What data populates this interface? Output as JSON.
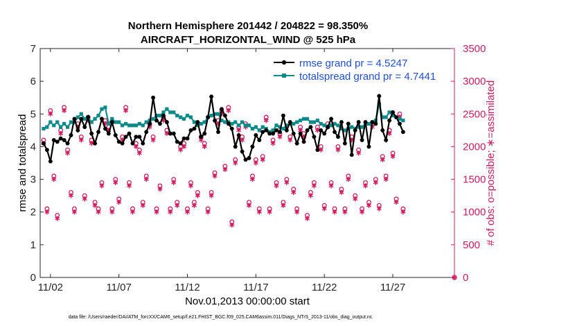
{
  "chart_data": {
    "type": "line",
    "title_line1": "Northern Hemisphere 201442 / 204822 = 98.350%",
    "title_line2": "AIRCRAFT_HORIZONTAL_WIND @ 525 hPa",
    "xlabel": "Nov.01,2013 00:00:00 start",
    "ylabel": "rmse and totalspread",
    "y2label": "# of obs: o=possible; ∗=assimilated",
    "footnote": "data file: /Users/raeder/DAI/ATM_forcXX/CAM6_setup/f.e21.FHIST_BGC.f09_025.CAM6assim.011/Diags_NTrS_2013-11/obs_diag_output.nc",
    "xlim": [
      0.75,
      31.0
    ],
    "ylim": [
      0,
      7
    ],
    "y2lim": [
      0,
      3500
    ],
    "x_ticks": [
      1.5,
      6.5,
      11.5,
      16.5,
      21.5,
      26.5
    ],
    "x_tick_labels": [
      "11/02",
      "11/07",
      "11/12",
      "11/17",
      "11/22",
      "11/27"
    ],
    "y_ticks": [
      0,
      1,
      2,
      3,
      4,
      5,
      6,
      7
    ],
    "y2_ticks": [
      0,
      500,
      1000,
      1500,
      2000,
      2500,
      3000,
      3500
    ],
    "colors": {
      "rmse": "#000000",
      "spread": "#0e8a8a",
      "obs": "#d11a5c",
      "legend_text": "#1f4fd6"
    },
    "legend": [
      {
        "key": "rmse",
        "label": "rmse grand pr = 4.5247"
      },
      {
        "key": "spread",
        "label": "totalspread grand pr = 4.7441"
      }
    ],
    "series": [
      {
        "name": "rmse",
        "values": [
          4.1,
          3.9,
          3.55,
          4.2,
          4.15,
          4.25,
          4.2,
          4.1,
          4.35,
          4.85,
          4.5,
          4.85,
          4.6,
          4.9,
          4.4,
          4.1,
          4.45,
          4.85,
          4.55,
          4.4,
          4.75,
          4.35,
          4.15,
          4.1,
          4.3,
          4.4,
          4.1,
          4.3,
          4.3,
          4.1,
          4.45,
          4.7,
          5.5,
          4.8,
          4.7,
          4.95,
          4.75,
          4.4,
          4.4,
          4.15,
          4.1,
          4.25,
          4.25,
          4.5,
          4.55,
          4.75,
          4.3,
          4.4,
          4.9,
          5.53,
          4.8,
          4.45,
          5.15,
          4.95,
          4.7,
          4.55,
          4.0,
          4.35,
          3.85,
          3.6,
          3.65,
          4.0,
          4.35,
          4.2,
          4.45,
          4.5,
          4.4,
          4.4,
          4.5,
          4.45,
          4.95,
          4.5,
          4.75,
          4.4,
          4.1,
          4.4,
          4.15,
          4.5,
          4.6,
          4.3,
          3.9,
          4.5,
          4.4,
          4.6,
          4.85,
          4.45,
          4.3,
          4.75,
          4.1,
          4.7,
          3.75,
          4.5,
          4.75,
          4.2,
          4.75,
          4.0,
          4.75,
          4.7,
          5.55,
          4.5,
          4.2,
          4.8,
          5.05,
          4.9,
          4.7,
          4.45
        ]
      },
      {
        "name": "totalspread",
        "values": [
          4.55,
          4.6,
          4.75,
          4.65,
          4.75,
          4.6,
          4.7,
          4.6,
          4.75,
          4.75,
          4.9,
          5.0,
          4.85,
          4.9,
          4.75,
          4.85,
          4.95,
          5.15,
          5.2,
          4.7,
          4.85,
          4.75,
          4.75,
          4.65,
          4.7,
          4.65,
          4.65,
          4.65,
          4.7,
          4.65,
          4.75,
          4.8,
          4.85,
          4.95,
          4.95,
          5.05,
          5.15,
          5.05,
          5.05,
          4.95,
          4.9,
          4.85,
          4.95,
          4.9,
          4.75,
          4.65,
          4.7,
          4.75,
          4.9,
          4.95,
          5.0,
          5.0,
          4.8,
          4.75,
          4.75,
          4.7,
          4.75,
          4.65,
          4.75,
          4.65,
          4.65,
          4.55,
          4.6,
          4.5,
          4.6,
          4.55,
          4.45,
          4.5,
          4.65,
          4.6,
          4.55,
          4.65,
          4.7,
          4.7,
          4.75,
          4.8,
          4.85,
          4.85,
          4.75,
          4.75,
          4.8,
          4.7,
          4.65,
          4.6,
          4.65,
          4.7,
          4.65,
          4.55,
          4.5,
          4.55,
          4.6,
          4.55,
          4.6,
          4.6,
          4.7,
          4.7,
          4.75,
          4.8,
          5.3,
          4.9,
          4.9,
          5.05,
          4.95,
          4.9,
          4.85,
          4.8
        ]
      },
      {
        "name": "possible",
        "marker": "o",
        "values": [
          2100,
          1050,
          2550,
          1550,
          950,
          2250,
          2600,
          1950,
          1300,
          1050,
          2350,
          2150,
          1250,
          2450,
          2100,
          1150,
          1050,
          1450,
          2400,
          2300,
          1050,
          1500,
          1200,
          2150,
          2600,
          1450,
          1050,
          2050,
          1950,
          1150,
          1550,
          2350,
          2150,
          1050,
          1400,
          2450,
          2250,
          1050,
          1500,
          1150,
          2000,
          2050,
          1050,
          1450,
          1150,
          1300,
          2150,
          2050,
          1050,
          1300,
          1600,
          2400,
          2550,
          1700,
          2600,
          850,
          1800,
          2300,
          2150,
          2350,
          1150,
          1550,
          1800,
          1050,
          1850,
          2450,
          1050,
          2100,
          1450,
          2200,
          1150,
          1500,
          2150,
          1350,
          1050,
          2300,
          2200,
          950,
          1300,
          1450,
          2300,
          2000,
          1100,
          2350,
          1450,
          1050,
          2000,
          1350,
          1050,
          1550,
          2150,
          1250,
          1950,
          1050,
          1450,
          1150,
          2350,
          1500,
          1100,
          1850,
          1550,
          2250,
          1900,
          1200,
          2500,
          1050
        ]
      },
      {
        "name": "assimilated",
        "marker": "*",
        "values": [
          2050,
          1000,
          2500,
          1500,
          900,
          2200,
          2550,
          1900,
          1250,
          1000,
          2300,
          2100,
          1200,
          2400,
          2050,
          1100,
          1000,
          1400,
          2350,
          2250,
          1000,
          1450,
          1150,
          2100,
          2550,
          1400,
          1000,
          2000,
          1900,
          1100,
          1500,
          2300,
          2100,
          1000,
          1350,
          2400,
          2200,
          1000,
          1450,
          1100,
          1950,
          2000,
          1000,
          1400,
          1100,
          1250,
          2100,
          2000,
          1000,
          1250,
          1550,
          2350,
          2500,
          1650,
          2550,
          800,
          1750,
          2250,
          2100,
          2300,
          1100,
          1500,
          1750,
          1000,
          1800,
          2400,
          1000,
          2050,
          1400,
          2150,
          1100,
          1450,
          2100,
          1300,
          1000,
          2250,
          2150,
          900,
          1250,
          1400,
          2250,
          1950,
          1050,
          2300,
          1400,
          1000,
          1950,
          1300,
          1000,
          1500,
          2100,
          1200,
          1900,
          1000,
          1400,
          1100,
          2300,
          1450,
          1050,
          1800,
          1500,
          2200,
          1850,
          1150,
          2450,
          1000
        ]
      }
    ],
    "extra_point": {
      "x": 31.0,
      "possible": 0,
      "assimilated": 0
    }
  }
}
